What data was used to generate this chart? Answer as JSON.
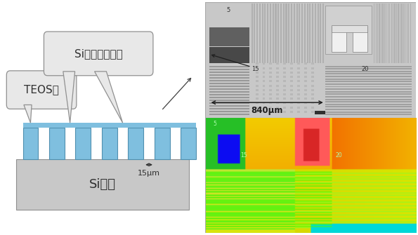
{
  "fig_width": 5.95,
  "fig_height": 3.35,
  "dpi": 100,
  "bg_color": "#ffffff",
  "left_panel": {
    "substrate_color": "#c8c8c8",
    "substrate_edge": "#909090",
    "fin_color": "#7fbfdf",
    "fin_edge": "#5090b0",
    "callout_bg": "#e8e8e8",
    "callout_edge": "#909090",
    "text_color": "#303030",
    "substrate_label": "Si基板",
    "label_teos": "TEOS膜",
    "label_si_etch": "Siエッチング部",
    "label_15um": "15μm"
  },
  "right_top": {
    "bg": "#cccccc",
    "label_840": "840μm",
    "num5": "5",
    "num15": "15",
    "num20": "20"
  },
  "right_bot": {
    "num5": "5",
    "num15": "15",
    "num20": "20"
  }
}
